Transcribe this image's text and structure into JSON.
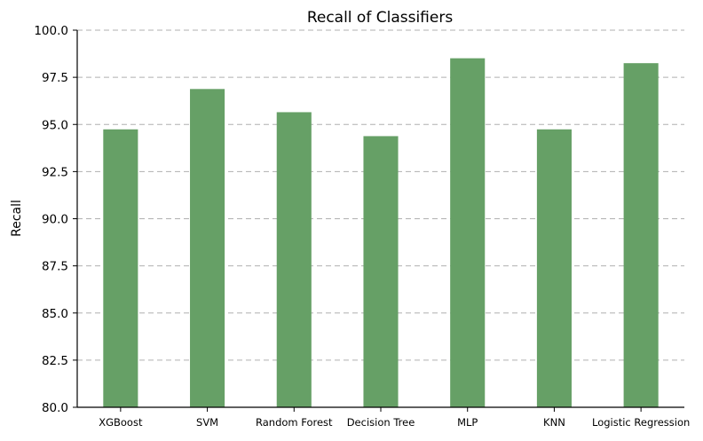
{
  "chart_data": {
    "type": "bar",
    "title": "Recall of Classifiers",
    "xlabel": "",
    "ylabel": "Recall",
    "categories": [
      "XGBoost",
      "SVM",
      "Random Forest",
      "Decision Tree",
      "MLP",
      "KNN",
      "Logistic Regression"
    ],
    "values": [
      94.74,
      96.88,
      95.65,
      94.38,
      98.51,
      94.74,
      98.25
    ],
    "ylim": [
      80.0,
      100.0
    ],
    "yticks": [
      "80.0",
      "82.5",
      "85.0",
      "87.5",
      "90.0",
      "92.5",
      "95.0",
      "97.5",
      "100.0"
    ],
    "grid": "y-axis dashed",
    "bar_color": "#66a066",
    "grid_color": "#b0b0b0"
  }
}
